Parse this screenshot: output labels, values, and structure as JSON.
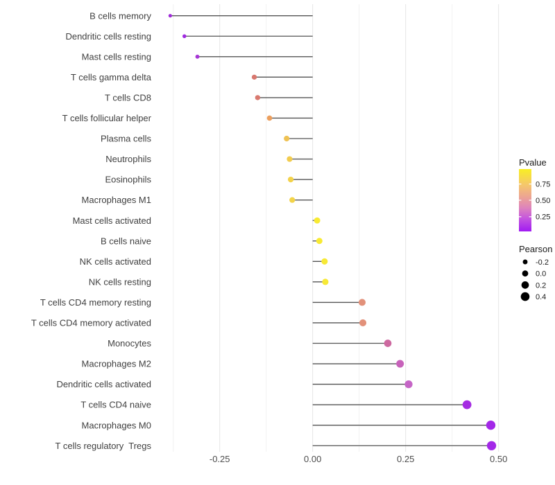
{
  "chart_data": {
    "type": "lollipop",
    "orientation": "horizontal",
    "title": "",
    "xlabel": "",
    "ylabel": "",
    "grid": "on",
    "background": "#FFFFFF",
    "x_axis": {
      "range": [
        -0.425,
        0.525
      ],
      "tick_values": [
        -0.25,
        0.0,
        0.25,
        0.5
      ],
      "tick_labels": [
        "-0.25",
        "0.00",
        "0.25",
        "0.50"
      ],
      "minor_gridlines": [
        -0.375,
        -0.125,
        0.125,
        0.375
      ],
      "baseline": 0
    },
    "points": [
      {
        "label": "B cells memory",
        "pearson": -0.383,
        "color": "#9F2BD8"
      },
      {
        "label": "Dendritic cells resting",
        "pearson": -0.345,
        "color": "#A02BE0"
      },
      {
        "label": "Mast cells resting",
        "pearson": -0.31,
        "color": "#A736D6"
      },
      {
        "label": "T cells gamma delta",
        "pearson": -0.157,
        "color": "#D8786F"
      },
      {
        "label": "T cells CD8",
        "pearson": -0.148,
        "color": "#D9796F"
      },
      {
        "label": "T cells follicular helper",
        "pearson": -0.116,
        "color": "#EC9F5E"
      },
      {
        "label": "Plasma cells",
        "pearson": -0.07,
        "color": "#EFC254"
      },
      {
        "label": "Neutrophils",
        "pearson": -0.062,
        "color": "#F2CC4E"
      },
      {
        "label": "Eosinophils",
        "pearson": -0.059,
        "color": "#F3D24A"
      },
      {
        "label": "Macrophages M1",
        "pearson": -0.055,
        "color": "#F3D44A"
      },
      {
        "label": "Mast cells activated",
        "pearson": 0.012,
        "color": "#F8EA32"
      },
      {
        "label": "B cells naive",
        "pearson": 0.018,
        "color": "#F8EA32"
      },
      {
        "label": "NK cells activated",
        "pearson": 0.032,
        "color": "#F7E936"
      },
      {
        "label": "NK cells resting",
        "pearson": 0.034,
        "color": "#F7E936"
      },
      {
        "label": "T cells CD4 memory resting",
        "pearson": 0.133,
        "color": "#E2917A"
      },
      {
        "label": "T cells CD4 memory activated",
        "pearson": 0.135,
        "color": "#E2917A"
      },
      {
        "label": "Monocytes",
        "pearson": 0.202,
        "color": "#CD69A0"
      },
      {
        "label": "Macrophages M2",
        "pearson": 0.235,
        "color": "#C762BA"
      },
      {
        "label": "Dendritic cells activated",
        "pearson": 0.258,
        "color": "#C565C6"
      },
      {
        "label": "T cells CD4 naive",
        "pearson": 0.415,
        "color": "#A52BE2"
      },
      {
        "label": "Macrophages M0",
        "pearson": 0.479,
        "color": "#A328E8"
      },
      {
        "label": "T cells regulatory  Tregs",
        "pearson": 0.481,
        "color": "#A328E8"
      }
    ],
    "legend_pvalue": {
      "title": "Pvalue",
      "tick_labels": [
        "0.75",
        "0.50",
        "0.25"
      ],
      "tick_positions": [
        0.24,
        0.5,
        0.765
      ],
      "gradient": [
        {
          "offset": "0%",
          "color": "#F8EF23"
        },
        {
          "offset": "25%",
          "color": "#F5C76B"
        },
        {
          "offset": "45%",
          "color": "#ECA394"
        },
        {
          "offset": "62%",
          "color": "#DE84BC"
        },
        {
          "offset": "80%",
          "color": "#C353DF"
        },
        {
          "offset": "100%",
          "color": "#A01BF2"
        }
      ]
    },
    "legend_pearson": {
      "title": "Pearson",
      "entries": [
        {
          "label": "-0.2",
          "value": -0.2
        },
        {
          "label": "0.0",
          "value": 0.0
        },
        {
          "label": "0.2",
          "value": 0.2
        },
        {
          "label": "0.4",
          "value": 0.4
        }
      ],
      "dot_color": "#000000"
    },
    "style": {
      "stick_color": "#454545",
      "major_grid_color": "#E4E4E4",
      "minor_grid_color": "#F2F2F2",
      "axis_text_color": "#4D4D4D",
      "category_text_color": "#404040"
    }
  }
}
